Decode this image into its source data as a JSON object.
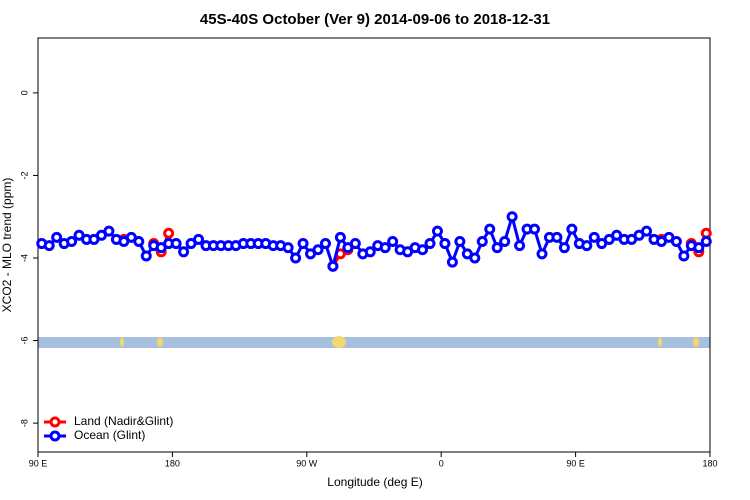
{
  "chart_data": {
    "type": "line",
    "title": "45S-40S October (Ver 9)   2014-09-06 to 2018-12-31",
    "x_label": "Longitude (deg E)",
    "y_label": "XCO2 - MLO trend (ppm)",
    "x": [
      92.5,
      97.5,
      102.5,
      107.5,
      112.5,
      117.5,
      122.5,
      127.5,
      132.5,
      137.5,
      142.5,
      147.5,
      152.5,
      157.5,
      162.5,
      167.5,
      172.5,
      177.5,
      182.5,
      187.5,
      192.5,
      197.5,
      202.5,
      207.5,
      212.5,
      217.5,
      222.5,
      227.5,
      232.5,
      237.5,
      242.5,
      247.5,
      252.5,
      257.5,
      262.5,
      267.5,
      272.5,
      277.5,
      282.5,
      287.5,
      292.5,
      297.5,
      302.5,
      307.5,
      312.5,
      317.5,
      322.5,
      327.5,
      332.5,
      337.5,
      342.5,
      347.5,
      352.5,
      357.5,
      362.5,
      367.5,
      372.5,
      377.5,
      382.5,
      387.5,
      392.5,
      397.5,
      402.5,
      407.5,
      412.5,
      417.5,
      422.5,
      427.5,
      432.5,
      437.5,
      442.5,
      447.5,
      452.5,
      457.5,
      462.5,
      467.5,
      472.5,
      477.5,
      482.5,
      487.5,
      492.5,
      497.5,
      502.5,
      507.5,
      512.5,
      517.5,
      522.5,
      527.5,
      532.5,
      537.5
    ],
    "series": [
      {
        "name": "Land (Nadir&Glint)",
        "color": "#ff0000",
        "values": [
          null,
          null,
          null,
          null,
          null,
          null,
          null,
          null,
          null,
          null,
          null,
          -3.55,
          null,
          null,
          null,
          -3.65,
          -3.85,
          -3.4,
          null,
          null,
          null,
          null,
          null,
          null,
          null,
          null,
          null,
          null,
          null,
          null,
          null,
          null,
          null,
          null,
          null,
          null,
          null,
          null,
          null,
          -4.2,
          -3.9,
          -3.8,
          null,
          null,
          null,
          null,
          null,
          null,
          null,
          null,
          null,
          null,
          null,
          null,
          null,
          null,
          null,
          null,
          null,
          null,
          null,
          null,
          null,
          null,
          null,
          null,
          null,
          null,
          null,
          null,
          null,
          null,
          null,
          null,
          null,
          null,
          null,
          null,
          null,
          null,
          null,
          null,
          null,
          -3.55,
          null,
          null,
          null,
          -3.65,
          -3.85,
          -3.4
        ]
      },
      {
        "name": "Ocean (Glint)",
        "color": "#0000ff",
        "values": [
          -3.65,
          -3.7,
          -3.5,
          -3.65,
          -3.6,
          -3.45,
          -3.55,
          -3.55,
          -3.45,
          -3.35,
          -3.55,
          -3.6,
          -3.5,
          -3.6,
          -3.95,
          -3.7,
          -3.75,
          -3.65,
          -3.65,
          -3.85,
          -3.65,
          -3.55,
          -3.7,
          -3.7,
          -3.7,
          -3.7,
          -3.7,
          -3.65,
          -3.65,
          -3.65,
          -3.65,
          -3.7,
          -3.7,
          -3.75,
          -4.0,
          -3.65,
          -3.9,
          -3.8,
          -3.65,
          -4.2,
          -3.5,
          -3.75,
          -3.65,
          -3.9,
          -3.85,
          -3.7,
          -3.75,
          -3.6,
          -3.8,
          -3.85,
          -3.75,
          -3.8,
          -3.65,
          -3.35,
          -3.65,
          -4.1,
          -3.6,
          -3.9,
          -4.0,
          -3.6,
          -3.3,
          -3.75,
          -3.6,
          -3.0,
          -3.7,
          -3.3,
          -3.3,
          -3.9,
          -3.5,
          -3.5,
          -3.75,
          -3.3,
          -3.65,
          -3.7,
          -3.5,
          -3.65,
          -3.55,
          -3.45,
          -3.55,
          -3.55,
          -3.45,
          -3.35,
          -3.55,
          -3.6,
          -3.5,
          -3.6,
          -3.95,
          -3.7,
          -3.75,
          -3.6
        ]
      }
    ],
    "xlim": [
      90,
      540
    ],
    "xticks": [
      {
        "value": 90,
        "label": "90 E"
      },
      {
        "value": 180,
        "label": "180"
      },
      {
        "value": 270,
        "label": "90 W"
      },
      {
        "value": 360,
        "label": "0"
      },
      {
        "value": 450,
        "label": "90 E"
      },
      {
        "value": 540,
        "label": "180"
      }
    ],
    "ylim": [
      -8.7,
      1.33
    ],
    "yticks": [
      0,
      -2,
      -4,
      -6,
      -8
    ],
    "legend": "bottomleft"
  }
}
